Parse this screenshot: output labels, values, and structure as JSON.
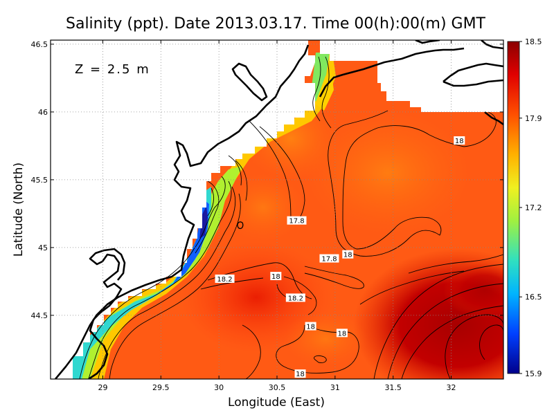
{
  "chart_data": {
    "type": "heatmap",
    "title": "Salinity (ppt). Date 2013.03.17. Time 00(h):00(m) GMT",
    "xlabel": "Longitude (East)",
    "ylabel": "Latitude (North)",
    "annotation": "Z = 2.5 m",
    "xlim": [
      28.55,
      32.45
    ],
    "ylim": [
      44.03,
      46.53
    ],
    "x_ticks": [
      29,
      29.5,
      30,
      30.5,
      31,
      31.5,
      32
    ],
    "x_tick_labels": [
      "29",
      "29.5",
      "30",
      "30.5",
      "31",
      "31.5",
      "32"
    ],
    "y_ticks": [
      44.5,
      45,
      45.5,
      46,
      46.5
    ],
    "y_tick_labels": [
      "44.5",
      "45",
      "45.5",
      "46",
      "46.5"
    ],
    "grid": true,
    "colorbar": {
      "range": [
        15.9,
        18.5
      ],
      "ticks": [
        15.9,
        16.5,
        17.2,
        17.9,
        18.5
      ],
      "tick_labels": [
        "15.9",
        "16.5",
        "17.2",
        "17.9",
        "18.5"
      ],
      "colors": [
        "#00008b",
        "#0040ff",
        "#00c0ff",
        "#40e0a0",
        "#c0f030",
        "#ffe000",
        "#ffa000",
        "#ff4500",
        "#e00000",
        "#8b0000"
      ]
    },
    "contour_labels": [
      {
        "text": "18",
        "lon": 32.07,
        "lat": 45.79
      },
      {
        "text": "17.8",
        "lon": 30.67,
        "lat": 45.2
      },
      {
        "text": "17.8",
        "lon": 30.95,
        "lat": 44.92
      },
      {
        "text": "18",
        "lon": 31.11,
        "lat": 44.95
      },
      {
        "text": "18.2",
        "lon": 30.05,
        "lat": 44.77
      },
      {
        "text": "18",
        "lon": 30.49,
        "lat": 44.79
      },
      {
        "text": "18.2",
        "lon": 30.66,
        "lat": 44.63
      },
      {
        "text": "18",
        "lon": 30.79,
        "lat": 44.42
      },
      {
        "text": "18",
        "lon": 31.06,
        "lat": 44.37
      },
      {
        "text": "18",
        "lon": 30.7,
        "lat": 44.07
      }
    ],
    "colors": {
      "land": "#ffffff",
      "coast": "#000000",
      "base_sea": "#ff5a14"
    }
  }
}
